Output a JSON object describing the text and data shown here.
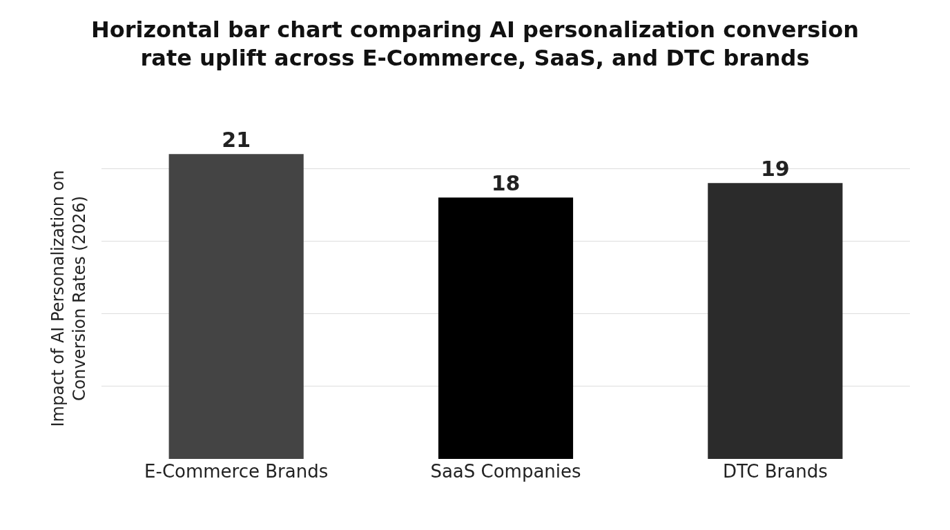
{
  "chart_data": {
    "type": "bar",
    "title": "Horizontal bar chart comparing AI personalization conversion rate uplift across E-Commerce, SaaS, and DTC brands",
    "ylabel": "Impact of AI Personalization on Conversion Rates (2026)",
    "categories": [
      "E-Commerce Brands",
      "SaaS Companies",
      "DTC Brands"
    ],
    "values": [
      21,
      18,
      19
    ],
    "colors": [
      "#444444",
      "#000000",
      "#2b2b2b"
    ],
    "data_labels": true,
    "tick_labels": "x",
    "grid": "y"
  }
}
